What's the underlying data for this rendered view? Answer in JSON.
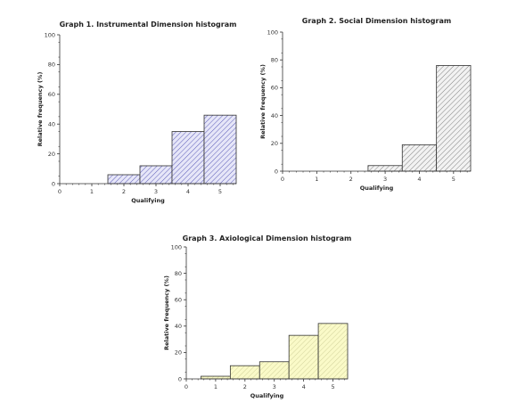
{
  "chart_data": [
    {
      "type": "bar",
      "title": "Graph 1. Instrumental Dimension histogram",
      "xlabel": "Qualifying",
      "ylabel": "Relative frequency (%)",
      "xlim": [
        0,
        5.5
      ],
      "ylim": [
        0,
        100
      ],
      "xticks": [
        0,
        1,
        2,
        3,
        4,
        5
      ],
      "yticks": [
        0,
        20,
        40,
        60,
        80,
        100
      ],
      "categories": [
        2,
        3,
        4,
        5
      ],
      "values": [
        6,
        12,
        35,
        46
      ],
      "fill": "#e6e6f8",
      "hatch": "#3a3aa8",
      "outline": "#333333",
      "grid": false
    },
    {
      "type": "bar",
      "title": "Graph 2. Social Dimension histogram",
      "xlabel": "Qualifying",
      "ylabel": "Relative frequency (%)",
      "xlim": [
        0,
        5.5
      ],
      "ylim": [
        0,
        100
      ],
      "xticks": [
        0,
        1,
        2,
        3,
        4,
        5
      ],
      "yticks": [
        0,
        20,
        40,
        60,
        80,
        100
      ],
      "categories": [
        3,
        4,
        5
      ],
      "values": [
        4,
        19,
        76
      ],
      "fill": "#f2f2f2",
      "hatch": "#666666",
      "outline": "#333333",
      "grid": false
    },
    {
      "type": "bar",
      "title": "Graph 3. Axiological Dimension histogram",
      "xlabel": "Qualifying",
      "ylabel": "Relative frequency (%)",
      "xlim": [
        0,
        5.5
      ],
      "ylim": [
        0,
        100
      ],
      "xticks": [
        0,
        1,
        2,
        3,
        4,
        5
      ],
      "yticks": [
        0,
        20,
        40,
        60,
        80,
        100
      ],
      "categories": [
        1,
        2,
        3,
        4,
        5
      ],
      "values": [
        2,
        10,
        13,
        33,
        42
      ],
      "fill": "#fafac8",
      "hatch": "#c8c890",
      "outline": "#333333",
      "grid": false
    }
  ]
}
